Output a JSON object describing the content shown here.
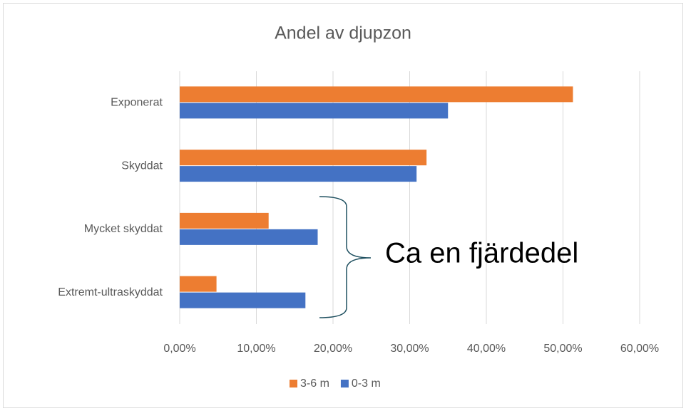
{
  "chart_data": {
    "type": "bar",
    "orientation": "horizontal",
    "title": "Andel av djupzon",
    "categories": [
      "Exponerat",
      "Skyddat",
      "Mycket skyddat",
      "Extremt-ultraskyddat"
    ],
    "series": [
      {
        "name": "3-6 m",
        "color": "#ed7d31",
        "values": [
          51.3,
          32.2,
          11.6,
          4.8
        ]
      },
      {
        "name": "0-3 m",
        "color": "#4472c4",
        "values": [
          35.0,
          30.9,
          18.0,
          16.4
        ]
      }
    ],
    "xlim": [
      0,
      60
    ],
    "xticks": [
      {
        "value": 0,
        "label": "0,00%"
      },
      {
        "value": 10,
        "label": "10,00%"
      },
      {
        "value": 20,
        "label": "20,00%"
      },
      {
        "value": 30,
        "label": "30,00%"
      },
      {
        "value": 40,
        "label": "40,00%"
      },
      {
        "value": 50,
        "label": "50,00%"
      },
      {
        "value": 60,
        "label": "60,00%"
      }
    ],
    "grid": true,
    "legend": "bottom",
    "annotation": "Ca en fjärdedel"
  }
}
